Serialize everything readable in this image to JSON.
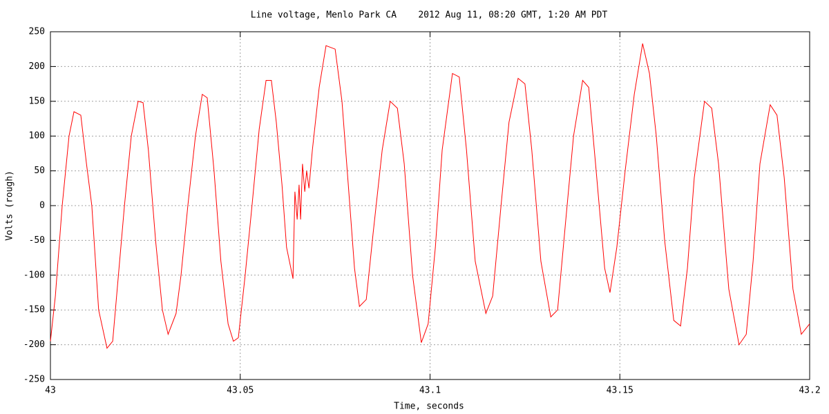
{
  "chart_data": {
    "type": "line",
    "title": "Line voltage, Menlo Park CA    2012 Aug 11, 08:20 GMT, 1:20 AM PDT",
    "x_label": "Time, seconds",
    "y_label": "Volts (rough)",
    "xlim": [
      43,
      43.2
    ],
    "xticks": [
      43,
      43.05,
      43.1,
      43.15,
      43.2
    ],
    "ylim": [
      -250,
      250
    ],
    "yticks": [
      -250,
      -200,
      -150,
      -100,
      -50,
      0,
      50,
      100,
      150,
      200,
      250
    ],
    "grid": true,
    "x": [
      43.0,
      43.0013,
      43.0031,
      43.0049,
      43.0062,
      43.008,
      43.0095,
      43.0109,
      43.0127,
      43.0149,
      43.0164,
      43.0195,
      43.0213,
      43.0231,
      43.0244,
      43.0258,
      43.0277,
      43.0295,
      43.031,
      43.0331,
      43.0344,
      43.0362,
      43.0382,
      43.04,
      43.0413,
      43.0431,
      43.0449,
      43.0468,
      43.0482,
      43.0495,
      43.0513,
      43.0531,
      43.055,
      43.0568,
      43.0582,
      43.0595,
      43.061,
      43.0622,
      43.0639,
      43.0644,
      43.065,
      43.0655,
      43.0659,
      43.0664,
      43.067,
      43.0675,
      43.0681,
      43.069,
      43.0708,
      43.0726,
      43.075,
      43.0768,
      43.0786,
      43.0801,
      43.0814,
      43.0832,
      43.085,
      43.0874,
      43.0895,
      43.0914,
      43.0932,
      43.0954,
      43.0977,
      43.0995,
      43.1014,
      43.1032,
      43.1059,
      43.1077,
      43.1096,
      43.1119,
      43.1147,
      43.1165,
      43.1187,
      43.1208,
      43.1232,
      43.125,
      43.1268,
      43.1292,
      43.1318,
      43.1336,
      43.1356,
      43.1378,
      43.1402,
      43.1418,
      43.1436,
      43.146,
      43.1474,
      43.1492,
      43.1514,
      43.1538,
      43.156,
      43.1578,
      43.1596,
      43.1618,
      43.1642,
      43.166,
      43.1678,
      43.1696,
      43.1723,
      43.1742,
      43.176,
      43.1787,
      43.1814,
      43.1833,
      43.1851,
      43.1869,
      43.1896,
      43.1914,
      43.1933,
      43.1956,
      43.1978,
      43.2
    ],
    "series": [
      {
        "color": "#ff0000",
        "values": [
          -195,
          -130,
          0,
          100,
          135,
          130,
          60,
          0,
          -150,
          -205,
          -195,
          0,
          100,
          150,
          148,
          80,
          -50,
          -150,
          -185,
          -155,
          -100,
          0,
          100,
          160,
          155,
          50,
          -80,
          -170,
          -195,
          -190,
          -100,
          0,
          110,
          180,
          180,
          120,
          30,
          -60,
          -105,
          20,
          -20,
          30,
          -20,
          60,
          20,
          50,
          25,
          80,
          170,
          230,
          225,
          150,
          20,
          -90,
          -145,
          -135,
          -40,
          80,
          150,
          140,
          60,
          -100,
          -197,
          -170,
          -60,
          80,
          190,
          185,
          80,
          -80,
          -155,
          -130,
          0,
          120,
          183,
          175,
          80,
          -80,
          -160,
          -150,
          -30,
          100,
          180,
          170,
          60,
          -90,
          -125,
          -60,
          50,
          160,
          233,
          190,
          100,
          -50,
          -165,
          -173,
          -90,
          40,
          150,
          140,
          60,
          -120,
          -200,
          -185,
          -80,
          60,
          145,
          130,
          40,
          -120,
          -185,
          -170
        ]
      }
    ]
  }
}
